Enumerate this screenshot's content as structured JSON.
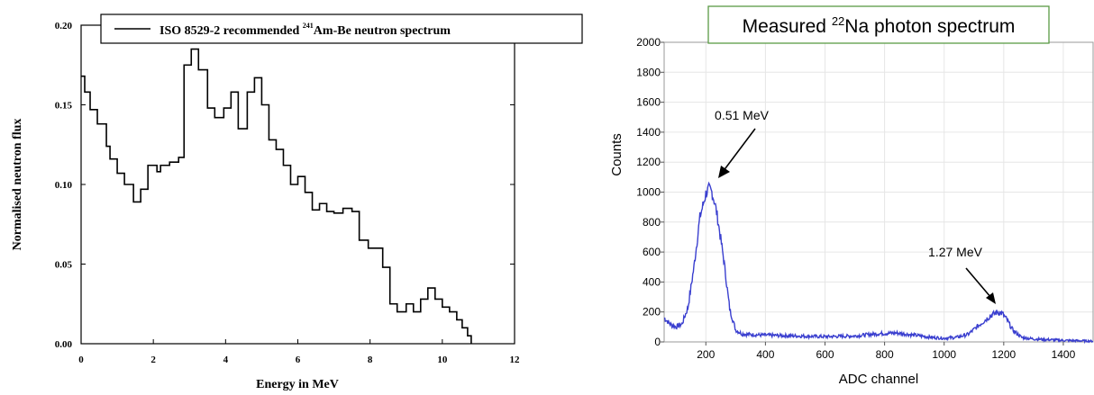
{
  "chart_data": [
    {
      "type": "line",
      "legend": "ISO 8529-2 recommended ",
      "legend_isotope_mass": "241",
      "legend_suffix": "Am-Be neutron spectrum",
      "xlabel": "Energy in MeV",
      "ylabel": "Normalised neutron flux",
      "xlim": [
        0,
        12
      ],
      "ylim": [
        0,
        0.2
      ],
      "xticks": [
        "0",
        "2",
        "4",
        "6",
        "8",
        "10",
        "12"
      ],
      "yticks": [
        "0.00",
        "0.05",
        "0.10",
        "0.15",
        "0.20"
      ],
      "step": "histogram",
      "edges": [
        0,
        0.1,
        0.25,
        0.45,
        0.7,
        0.8,
        1.0,
        1.2,
        1.45,
        1.65,
        1.85,
        2.1,
        2.2,
        2.45,
        2.7,
        2.85,
        3.05,
        3.25,
        3.5,
        3.7,
        3.95,
        4.15,
        4.35,
        4.6,
        4.8,
        5.0,
        5.2,
        5.4,
        5.6,
        5.8,
        6.0,
        6.2,
        6.4,
        6.6,
        6.8,
        7.0,
        7.25,
        7.5,
        7.7,
        7.95,
        8.15,
        8.35,
        8.55,
        8.75,
        9.0,
        9.2,
        9.4,
        9.6,
        9.8,
        10.0,
        10.2,
        10.4,
        10.55,
        10.7,
        10.8
      ],
      "values": [
        0.168,
        0.158,
        0.147,
        0.138,
        0.124,
        0.116,
        0.107,
        0.1,
        0.089,
        0.097,
        0.112,
        0.108,
        0.112,
        0.114,
        0.117,
        0.175,
        0.185,
        0.172,
        0.148,
        0.142,
        0.148,
        0.158,
        0.135,
        0.158,
        0.167,
        0.15,
        0.128,
        0.122,
        0.112,
        0.1,
        0.105,
        0.095,
        0.084,
        0.088,
        0.083,
        0.082,
        0.085,
        0.083,
        0.065,
        0.06,
        0.06,
        0.048,
        0.025,
        0.02,
        0.025,
        0.02,
        0.028,
        0.035,
        0.028,
        0.023,
        0.02,
        0.015,
        0.01,
        0.005
      ]
    },
    {
      "type": "line",
      "title": "Measured ",
      "title_isotope_mass": "22",
      "title_suffix": "Na photon spectrum",
      "xlabel": "ADC channel",
      "ylabel": "Counts",
      "xlim": [
        60,
        1500
      ],
      "ylim": [
        0,
        2000
      ],
      "xticks": [
        "200",
        "400",
        "600",
        "800",
        "1000",
        "1200",
        "1400"
      ],
      "yticks": [
        "0",
        "200",
        "400",
        "600",
        "800",
        "1000",
        "1200",
        "1400",
        "1600",
        "1800",
        "2000"
      ],
      "color": "#3a3fcf",
      "grid": true,
      "x": [
        60,
        80,
        100,
        120,
        140,
        160,
        180,
        200,
        210,
        220,
        230,
        240,
        260,
        280,
        300,
        320,
        340,
        400,
        500,
        600,
        700,
        780,
        840,
        900,
        960,
        1000,
        1040,
        1080,
        1110,
        1140,
        1160,
        1180,
        1195,
        1210,
        1230,
        1260,
        1300,
        1350,
        1400,
        1450,
        1500
      ],
      "values": [
        160,
        120,
        100,
        120,
        230,
        500,
        830,
        990,
        1020,
        1000,
        930,
        820,
        550,
        220,
        80,
        55,
        50,
        45,
        40,
        35,
        40,
        55,
        60,
        45,
        30,
        25,
        30,
        50,
        100,
        150,
        180,
        200,
        190,
        150,
        80,
        30,
        20,
        15,
        10,
        8,
        5
      ],
      "annotations": [
        {
          "label": "0.51 MeV",
          "x": 215,
          "y": 1000
        },
        {
          "label": "1.27 MeV",
          "x": 1185,
          "y": 200
        }
      ]
    }
  ]
}
